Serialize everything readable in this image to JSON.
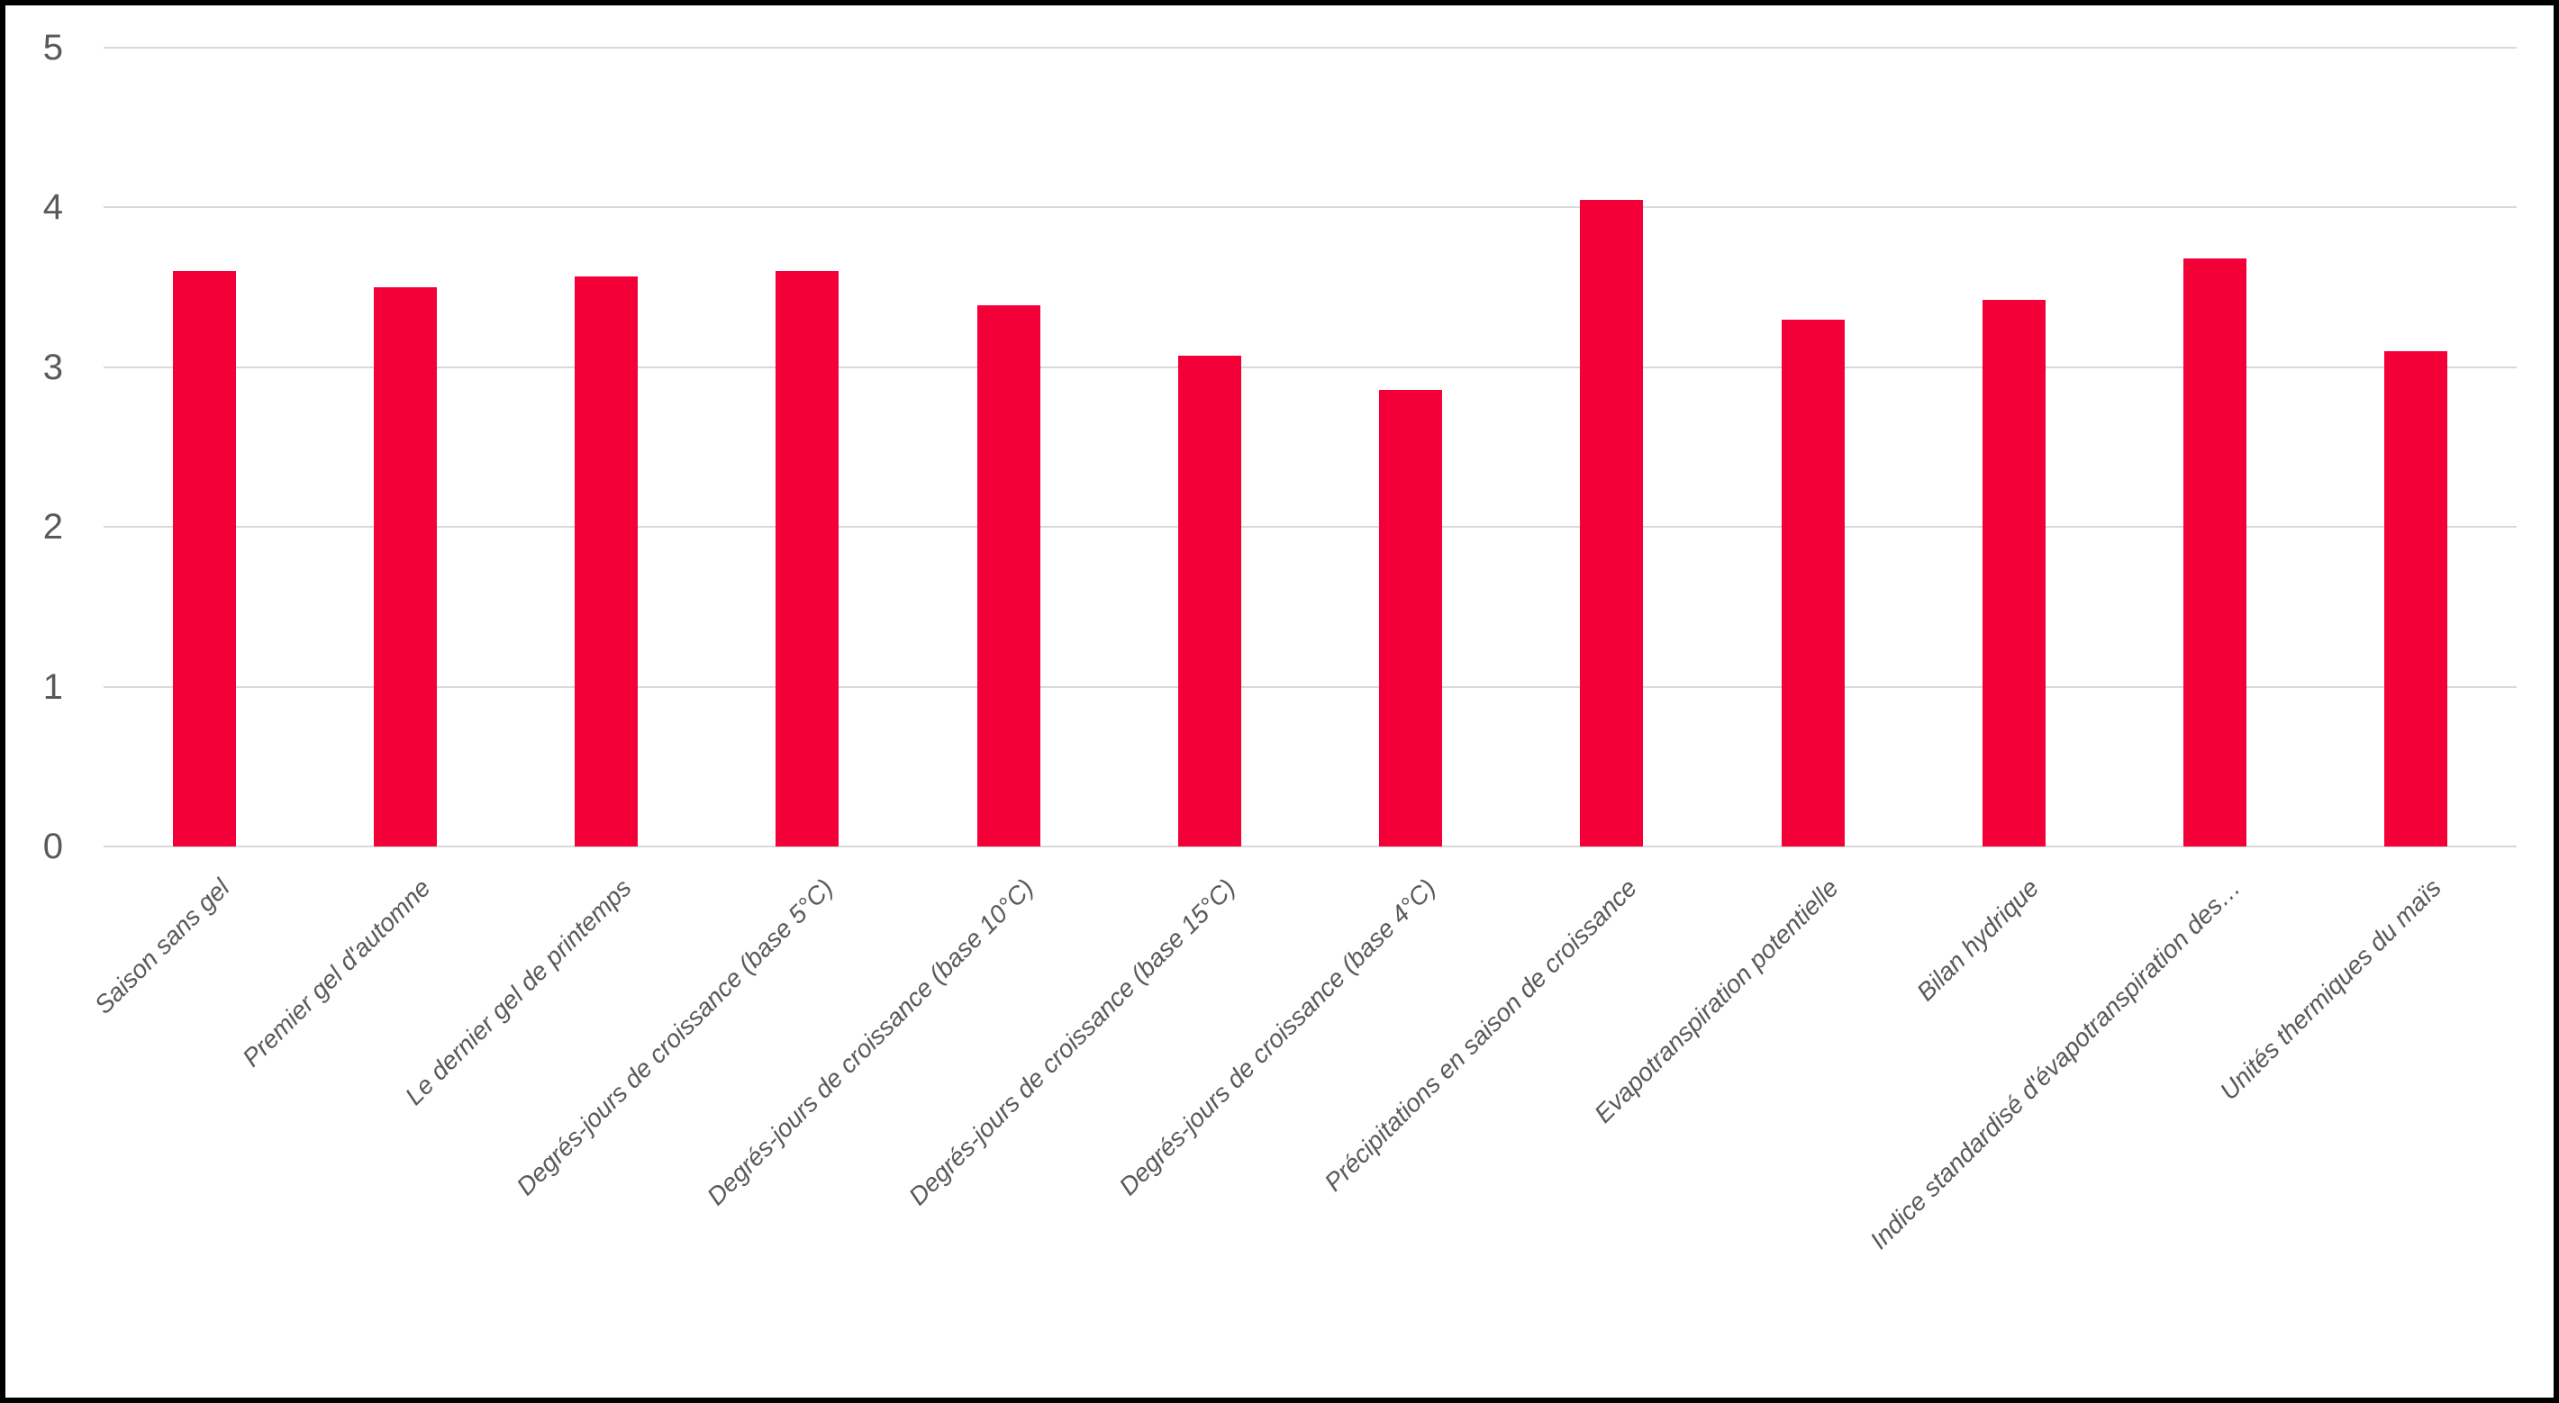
{
  "chart_data": {
    "type": "bar",
    "title": "",
    "xlabel": "",
    "ylabel": "",
    "categories": [
      "Saison sans gel",
      "Premier gel d'automne",
      "Le dernier gel de printemps",
      "Degrés-jours de croissance (base 5°C)",
      "Degrés-jours de croissance (base 10°C)",
      "Degrés-jours de croissance (base 15°C)",
      "Degrés-jours de croissance (base 4°C)",
      "Précipitations en saison de croissance",
      "Evapotranspiration potentielle",
      "Bilan hydrique",
      "Indice standardisé d'évapotranspiration des…",
      "Unités thermiques du maïs"
    ],
    "values": [
      3.6,
      3.5,
      3.57,
      3.6,
      3.39,
      3.07,
      2.86,
      4.05,
      3.3,
      3.42,
      3.68,
      3.1
    ],
    "ylim": [
      0,
      5
    ],
    "yticks": [
      0,
      1,
      2,
      3,
      4,
      5
    ],
    "grid": true,
    "legend": false,
    "bar_color": "#F40039",
    "gridline_color": "#D9D9D9",
    "axis_label_color": "#595959",
    "background_color": "#FFFFFF",
    "border_color": "#000000"
  }
}
